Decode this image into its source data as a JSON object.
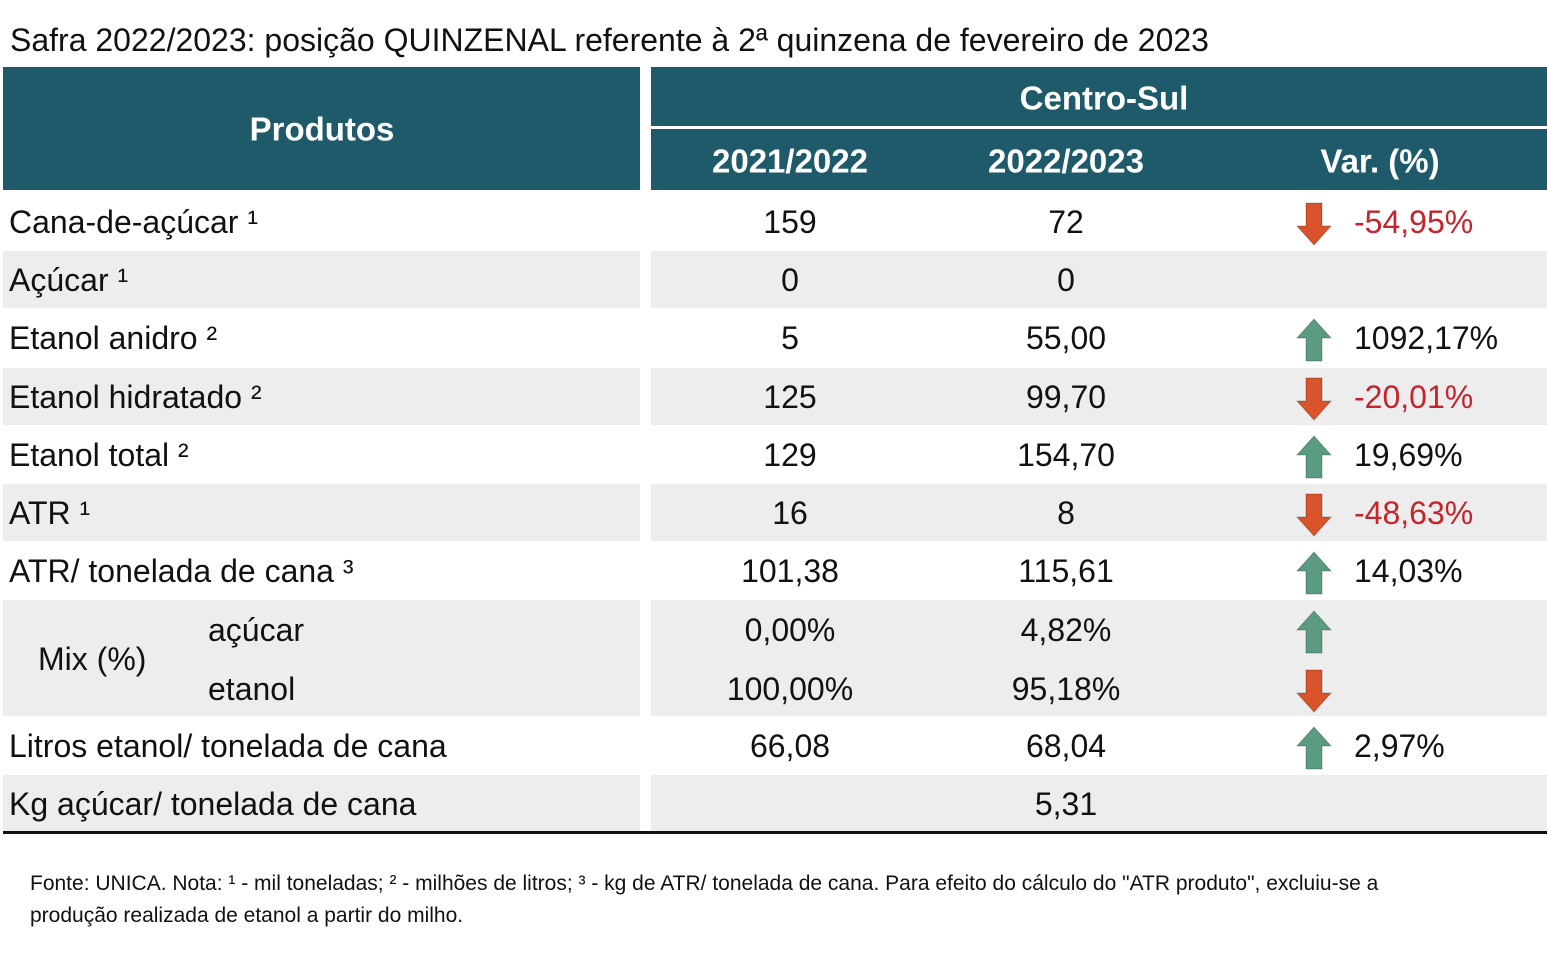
{
  "title": "Safra 2022/2023: posição QUINZENAL referente à 2ª quinzena de fevereiro de 2023",
  "table": {
    "header": {
      "products": "Produtos",
      "region": "Centro-Sul",
      "columns": [
        "2021/2022",
        "2022/2023",
        "Var. (%)"
      ]
    },
    "colors": {
      "header": "#1f5a6a",
      "shade": "#ededed",
      "up": "#5b9c80",
      "down": "#d9532b",
      "negative_text": "#c4242b"
    },
    "rows": [
      {
        "label": "Cana-de-açúcar ¹",
        "v2122": "159",
        "v2223": "72",
        "var": "-54,95%",
        "trend": "down"
      },
      {
        "label": "Açúcar ¹",
        "v2122": "0",
        "v2223": "0"
      },
      {
        "label": "Etanol anidro ²",
        "v2122": "5",
        "v2223": "55,00",
        "var": "1092,17%",
        "trend": "up"
      },
      {
        "label": "Etanol hidratado ²",
        "v2122": "125",
        "v2223": "99,70",
        "var": "-20,01%",
        "trend": "down"
      },
      {
        "label": "Etanol total ²",
        "v2122": "129",
        "v2223": "154,70",
        "var": "19,69%",
        "trend": "up"
      },
      {
        "label": "ATR ¹",
        "v2122": "16",
        "v2223": "8",
        "var": "-48,63%",
        "trend": "down"
      },
      {
        "label": "ATR/ tonelada de cana ³",
        "v2122": "101,38",
        "v2223": "115,61",
        "var": "14,03%",
        "trend": "up"
      },
      {
        "label": "Mix (%)",
        "sub": [
          {
            "label": "açúcar",
            "v2122": "0,00%",
            "v2223": "4,82%",
            "trend": "up"
          },
          {
            "label": "etanol",
            "v2122": "100,00%",
            "v2223": "95,18%",
            "trend": "down"
          }
        ]
      },
      {
        "label": "Litros etanol/ tonelada de cana",
        "v2122": "66,08",
        "v2223": "68,04",
        "var": "2,97%",
        "trend": "up"
      },
      {
        "label": "Kg açúcar/ tonelada de cana",
        "v2223": "5,31"
      }
    ]
  },
  "footnote": "Fonte: UNICA. Nota: ¹ - mil toneladas; ² - milhões de litros; ³ - kg de ATR/ tonelada de cana. Para efeito do cálculo do \"ATR produto\", excluiu-se a produção realizada de etanol a partir do milho."
}
